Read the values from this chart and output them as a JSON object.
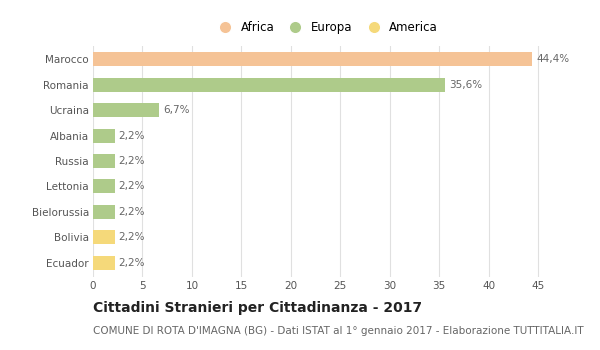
{
  "categories": [
    "Marocco",
    "Romania",
    "Ucraina",
    "Albania",
    "Russia",
    "Lettonia",
    "Bielorussia",
    "Bolivia",
    "Ecuador"
  ],
  "values": [
    44.4,
    35.6,
    6.7,
    2.2,
    2.2,
    2.2,
    2.2,
    2.2,
    2.2
  ],
  "labels": [
    "44,4%",
    "35,6%",
    "6,7%",
    "2,2%",
    "2,2%",
    "2,2%",
    "2,2%",
    "2,2%",
    "2,2%"
  ],
  "colors": [
    "#F5C396",
    "#AECB8A",
    "#AECB8A",
    "#AECB8A",
    "#AECB8A",
    "#AECB8A",
    "#AECB8A",
    "#F5D97A",
    "#F5D97A"
  ],
  "xlim": [
    0,
    47
  ],
  "xticks": [
    0,
    5,
    10,
    15,
    20,
    25,
    30,
    35,
    40,
    45
  ],
  "legend_items": [
    {
      "label": "Africa",
      "color": "#F5C396"
    },
    {
      "label": "Europa",
      "color": "#AECB8A"
    },
    {
      "label": "America",
      "color": "#F5D97A"
    }
  ],
  "title": "Cittadini Stranieri per Cittadinanza - 2017",
  "subtitle": "COMUNE DI ROTA D'IMAGNA (BG) - Dati ISTAT al 1° gennaio 2017 - Elaborazione TUTTITALIA.IT",
  "background_color": "#FFFFFF",
  "grid_color": "#E0E0E0",
  "bar_height": 0.55,
  "title_fontsize": 10,
  "subtitle_fontsize": 7.5,
  "label_fontsize": 7.5,
  "tick_fontsize": 7.5,
  "legend_fontsize": 8.5
}
